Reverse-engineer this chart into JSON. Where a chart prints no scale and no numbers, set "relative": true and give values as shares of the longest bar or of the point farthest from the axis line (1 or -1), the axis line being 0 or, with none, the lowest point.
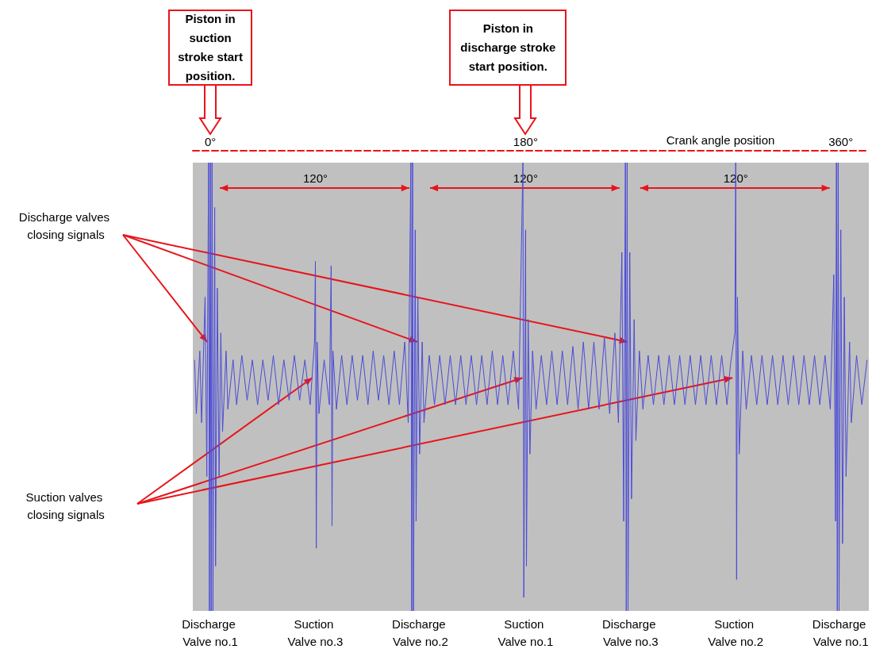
{
  "chart_data": {
    "type": "line",
    "relative": true,
    "xlabel": "Crank angle position",
    "xlim": [
      -10,
      376
    ],
    "xticks": [
      {
        "value": 0,
        "label": "0°"
      },
      {
        "value": 180,
        "label": "180°"
      },
      {
        "value": 360,
        "label": "360°"
      }
    ],
    "grid": false,
    "marker": "none",
    "line_style": "solid",
    "series": [
      {
        "color": "#4b4bd8",
        "x": [
          -9,
          -8,
          -6,
          -5,
          -3,
          -2,
          -1,
          -0.5,
          0,
          0.5,
          1,
          1.5,
          2.5,
          3,
          4,
          5,
          6,
          7,
          9,
          10,
          13,
          15,
          18,
          21,
          24,
          27,
          30,
          33,
          36,
          39,
          42,
          45,
          48,
          51,
          54,
          57,
          59.5,
          60,
          60.5,
          61,
          62,
          65,
          68,
          69,
          69.5,
          70,
          72,
          75,
          78,
          81,
          84,
          87,
          90,
          93,
          96,
          99,
          102,
          105,
          108,
          111,
          113,
          114.5,
          115,
          115.5,
          116,
          117,
          117.5,
          118.5,
          119.5,
          121,
          122,
          125,
          128,
          131,
          134,
          137,
          140,
          143,
          146,
          149,
          152,
          155,
          158,
          161,
          164,
          167,
          170,
          173,
          176,
          178.5,
          179,
          180,
          180.5,
          181.5,
          182.5,
          184,
          186,
          189,
          192,
          195,
          198,
          201,
          204,
          207,
          210,
          213,
          216,
          219,
          222,
          225,
          228,
          231,
          233,
          235,
          236,
          237,
          237.5,
          238,
          238.5,
          239.5,
          240.5,
          242,
          243,
          245,
          247,
          250,
          253,
          256,
          259,
          262,
          265,
          268,
          271,
          274,
          277,
          280,
          283,
          286,
          289,
          292,
          295,
          297,
          299.5,
          300,
          300.5,
          301,
          302,
          304,
          306,
          309,
          312,
          315,
          318,
          321,
          324,
          327,
          330,
          333,
          336,
          339,
          342,
          345,
          348,
          351,
          354,
          356,
          357,
          357.5,
          358,
          358.5,
          359,
          360,
          361,
          362,
          363,
          365,
          366,
          369,
          372,
          375
        ],
        "values": [
          0.56,
          0.44,
          0.58,
          0.42,
          0.7,
          0.3,
          1,
          0,
          1,
          0,
          1,
          0,
          0.9,
          0.1,
          0.72,
          0.3,
          0.62,
          0.4,
          0.58,
          0.45,
          0.56,
          0.46,
          0.57,
          0.47,
          0.56,
          0.46,
          0.56,
          0.47,
          0.57,
          0.46,
          0.56,
          0.47,
          0.57,
          0.47,
          0.56,
          0.46,
          0.6,
          0.78,
          0.14,
          0.6,
          0.44,
          0.56,
          0.46,
          0.77,
          0.19,
          0.58,
          0.45,
          0.57,
          0.46,
          0.57,
          0.47,
          0.57,
          0.46,
          0.58,
          0.47,
          0.57,
          0.46,
          0.58,
          0.46,
          0.6,
          0.42,
          1,
          0,
          1,
          0,
          0.85,
          0.2,
          0.7,
          0.35,
          0.6,
          0.42,
          0.57,
          0.46,
          0.57,
          0.46,
          0.57,
          0.46,
          0.57,
          0.46,
          0.57,
          0.46,
          0.57,
          0.46,
          0.58,
          0.46,
          0.57,
          0.46,
          0.58,
          0.45,
          1,
          0.03,
          0.85,
          0.1,
          0.65,
          0.35,
          0.58,
          0.45,
          0.57,
          0.46,
          0.58,
          0.46,
          0.58,
          0.46,
          0.59,
          0.45,
          0.6,
          0.45,
          0.6,
          0.45,
          0.61,
          0.44,
          0.62,
          0.42,
          0.8,
          0.2,
          1,
          0,
          1,
          0,
          0.8,
          0.25,
          0.65,
          0.38,
          0.58,
          0.45,
          0.57,
          0.46,
          0.57,
          0.46,
          0.57,
          0.46,
          0.57,
          0.46,
          0.57,
          0.46,
          0.57,
          0.46,
          0.57,
          0.46,
          0.57,
          0.46,
          0.55,
          0.62,
          1,
          0.07,
          0.7,
          0.35,
          0.58,
          0.45,
          0.57,
          0.46,
          0.57,
          0.46,
          0.57,
          0.46,
          0.57,
          0.46,
          0.57,
          0.46,
          0.57,
          0.46,
          0.57,
          0.46,
          0.57,
          0.45,
          0.75,
          0.2,
          1,
          0,
          1,
          0,
          0.85,
          0.15,
          0.7,
          0.3,
          0.6,
          0.42,
          0.57,
          0.46,
          0.56
        ]
      }
    ],
    "annotations": [
      "Discharge Valve no.1",
      "Suction Valve no.3",
      "Discharge Valve no.2",
      "Suction Valve no.1",
      "Discharge Valve no.3",
      "Suction Valve no.2",
      "Discharge Valve no.1",
      "120°",
      "120°",
      "120°",
      "Piston in suction stroke start position.",
      "Piston in discharge stroke start position.",
      "Discharge valves closing signals",
      "Suction valves closing signals"
    ]
  }
}
